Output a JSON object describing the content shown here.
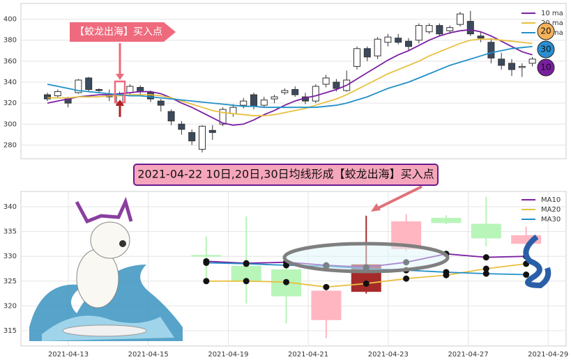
{
  "chart_data": [
    {
      "type": "candlestick",
      "ylim": [
        267,
        415
      ],
      "yticks": [
        280,
        300,
        320,
        340,
        360,
        380,
        400
      ],
      "grid": true,
      "up_color": "#ffffff",
      "down_color": "#3b4a5e",
      "legend": "upper right",
      "open": [
        328,
        327,
        324,
        330,
        344,
        333,
        328,
        318,
        330,
        335,
        330,
        322,
        312,
        300,
        292,
        276,
        294,
        300,
        310,
        318,
        328,
        318,
        324,
        330,
        333,
        326,
        322,
        338,
        340,
        332,
        355,
        372,
        365,
        378,
        382,
        379,
        380,
        388,
        394,
        389,
        395,
        398,
        384,
        378,
        362,
        358,
        354,
        358
      ],
      "close": [
        324,
        331,
        320,
        342,
        333,
        332,
        326,
        329,
        336,
        331,
        324,
        318,
        303,
        295,
        284,
        298,
        292,
        314,
        316,
        322,
        317,
        323,
        326,
        332,
        328,
        322,
        336,
        344,
        334,
        342,
        372,
        364,
        381,
        383,
        378,
        374,
        394,
        394,
        386,
        392,
        405,
        386,
        382,
        363,
        356,
        352,
        355,
        362
      ],
      "high": [
        330,
        333,
        326,
        343,
        345,
        334,
        333,
        331,
        338,
        337,
        332,
        324,
        314,
        303,
        295,
        299,
        299,
        316,
        319,
        325,
        330,
        326,
        328,
        334,
        336,
        330,
        338,
        347,
        343,
        351,
        374,
        374,
        383,
        386,
        386,
        382,
        396,
        396,
        396,
        394,
        407,
        408,
        388,
        382,
        368,
        362,
        358,
        364
      ],
      "low": [
        322,
        325,
        316,
        329,
        331,
        330,
        322,
        313,
        327,
        328,
        321,
        312,
        299,
        290,
        280,
        273,
        285,
        298,
        307,
        315,
        314,
        316,
        320,
        328,
        326,
        319,
        320,
        335,
        331,
        331,
        352,
        360,
        362,
        374,
        376,
        370,
        377,
        386,
        384,
        386,
        393,
        384,
        378,
        358,
        352,
        346,
        345,
        355
      ],
      "series": [
        {
          "name": "10 ma",
          "color": "#7b1fa2",
          "values": [
            320,
            322,
            324,
            326,
            327,
            328,
            328,
            329,
            330,
            331,
            331,
            329,
            325,
            320,
            316,
            311,
            306,
            301,
            299,
            300,
            304,
            309,
            313,
            318,
            322,
            325,
            327,
            330,
            333,
            337,
            343,
            349,
            355,
            361,
            366,
            370,
            375,
            380,
            384,
            387,
            389,
            390,
            388,
            384,
            379,
            374,
            369,
            366
          ]
        },
        {
          "name": "20 ma",
          "color": "#e8c040",
          "values": [
            325,
            325,
            325,
            326,
            326,
            326,
            327,
            327,
            328,
            328,
            328,
            327,
            325,
            322,
            319,
            316,
            313,
            311,
            310,
            309,
            308,
            308,
            309,
            311,
            313,
            315,
            318,
            321,
            324,
            328,
            333,
            338,
            343,
            348,
            352,
            356,
            360,
            365,
            369,
            373,
            377,
            380,
            381,
            381,
            380,
            379,
            378,
            377
          ]
        },
        {
          "name": "30 ma",
          "color": "#2090c8",
          "values": [
            338,
            336,
            334,
            332,
            331,
            330,
            329,
            328,
            327,
            327,
            326,
            325,
            324,
            323,
            322,
            321,
            320,
            319,
            318,
            317,
            317,
            316,
            316,
            316,
            316,
            316,
            316,
            317,
            318,
            320,
            323,
            326,
            330,
            334,
            337,
            340,
            344,
            348,
            352,
            356,
            359,
            362,
            365,
            368,
            370,
            372,
            373,
            374
          ]
        }
      ],
      "annotation": "【蛟龙出海】买入点",
      "badges": [
        {
          "label": "20",
          "color": "#f5b25a"
        },
        {
          "label": "30",
          "color": "#2a8fd0"
        },
        {
          "label": "10",
          "color": "#7a1fa0"
        }
      ]
    },
    {
      "type": "candlestick",
      "title": "2021-04-22 10日,20日,30日均线形成【蛟龙出海】买入点",
      "categories": [
        "2021-04-13",
        null,
        "2021-04-15",
        null,
        "2021-04-19",
        null,
        "2021-04-21",
        null,
        "2021-04-23",
        null,
        "2021-04-27",
        null,
        "2021-04-29"
      ],
      "ylim": [
        311.9,
        343.1
      ],
      "yticks": [
        315,
        320,
        325,
        330,
        335,
        340
      ],
      "grid": true,
      "legend": "upper right",
      "open": [
        null,
        null,
        null,
        330.2,
        328.0,
        327.3,
        317.2,
        322.9,
        331.5,
        337.7,
        336.5,
        332.6,
        null
      ],
      "close": [
        null,
        null,
        null,
        330.0,
        325.0,
        322.0,
        323.0,
        328.3,
        337.0,
        336.8,
        333.7,
        334.2,
        null
      ],
      "high": [
        null,
        null,
        null,
        334.0,
        338.0,
        329.0,
        323.5,
        338.2,
        338.5,
        338.3,
        342.0,
        336.0,
        null
      ],
      "low": [
        null,
        null,
        null,
        325.5,
        320.5,
        316.5,
        313.5,
        322.5,
        331.0,
        336.5,
        332.0,
        331.0,
        null
      ],
      "colors": [
        null,
        null,
        null,
        "#b8f5b8",
        "#b8f5b8",
        "#b8f5b8",
        "#ffb6c1",
        "#a52a2a",
        "#ffb6c1",
        "#b8f5b8",
        "#b8f5b8",
        "#ffb6c1",
        null
      ],
      "series": [
        {
          "name": "MA10",
          "color": "#7b1fa2",
          "values": [
            null,
            null,
            null,
            329.0,
            328.6,
            328.8,
            328.2,
            327.8,
            328.8,
            330.5,
            329.8,
            330.0,
            null
          ]
        },
        {
          "name": "MA20",
          "color": "#e8c040",
          "values": [
            null,
            null,
            null,
            325.0,
            325.0,
            324.8,
            323.8,
            324.5,
            325.5,
            326.2,
            327.5,
            328.5,
            null
          ]
        },
        {
          "name": "MA30",
          "color": "#2090c8",
          "values": [
            null,
            null,
            null,
            328.7,
            328.5,
            328.2,
            328.0,
            327.5,
            327.2,
            326.8,
            326.5,
            326.3,
            null
          ]
        }
      ]
    }
  ]
}
